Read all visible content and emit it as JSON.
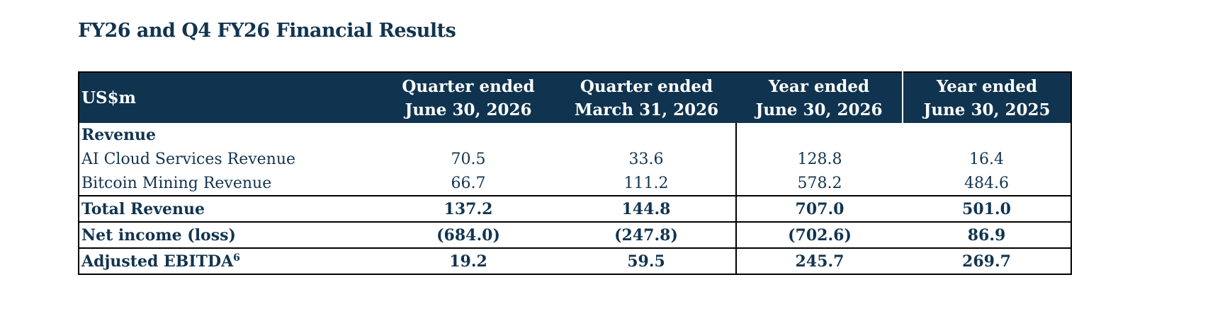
{
  "header": {
    "title": "FY26 and Q4 FY26 Financial Results"
  },
  "table": {
    "columns": [
      {
        "label": "US$m"
      },
      {
        "lines": [
          "Quarter ended",
          "June 30, 2026"
        ]
      },
      {
        "lines": [
          "Quarter ended",
          "March 31, 2026"
        ]
      },
      {
        "lines": [
          "Year ended",
          "June 30, 2026"
        ]
      },
      {
        "lines": [
          "Year ended",
          "June 30, 2025"
        ]
      }
    ],
    "section": "Revenue",
    "rows": [
      {
        "label": "AI Cloud Services Revenue",
        "cells": [
          "70.5",
          "33.6",
          "128.8",
          "16.4"
        ]
      },
      {
        "label": "Bitcoin Mining Revenue",
        "cells": [
          "66.7",
          "111.2",
          "578.2",
          "484.6"
        ]
      },
      {
        "label": "Total Revenue",
        "cells": [
          "137.2",
          "144.8",
          "707.0",
          "501.0"
        ]
      },
      {
        "label": "Net income (loss)",
        "cells": [
          "(684.0)",
          "(247.8)",
          "(702.6)",
          "86.9"
        ]
      },
      {
        "label": "Adjusted EBITDA",
        "footnote": "6",
        "cells": [
          "19.2",
          "59.5",
          "245.7",
          "269.7"
        ]
      }
    ]
  }
}
